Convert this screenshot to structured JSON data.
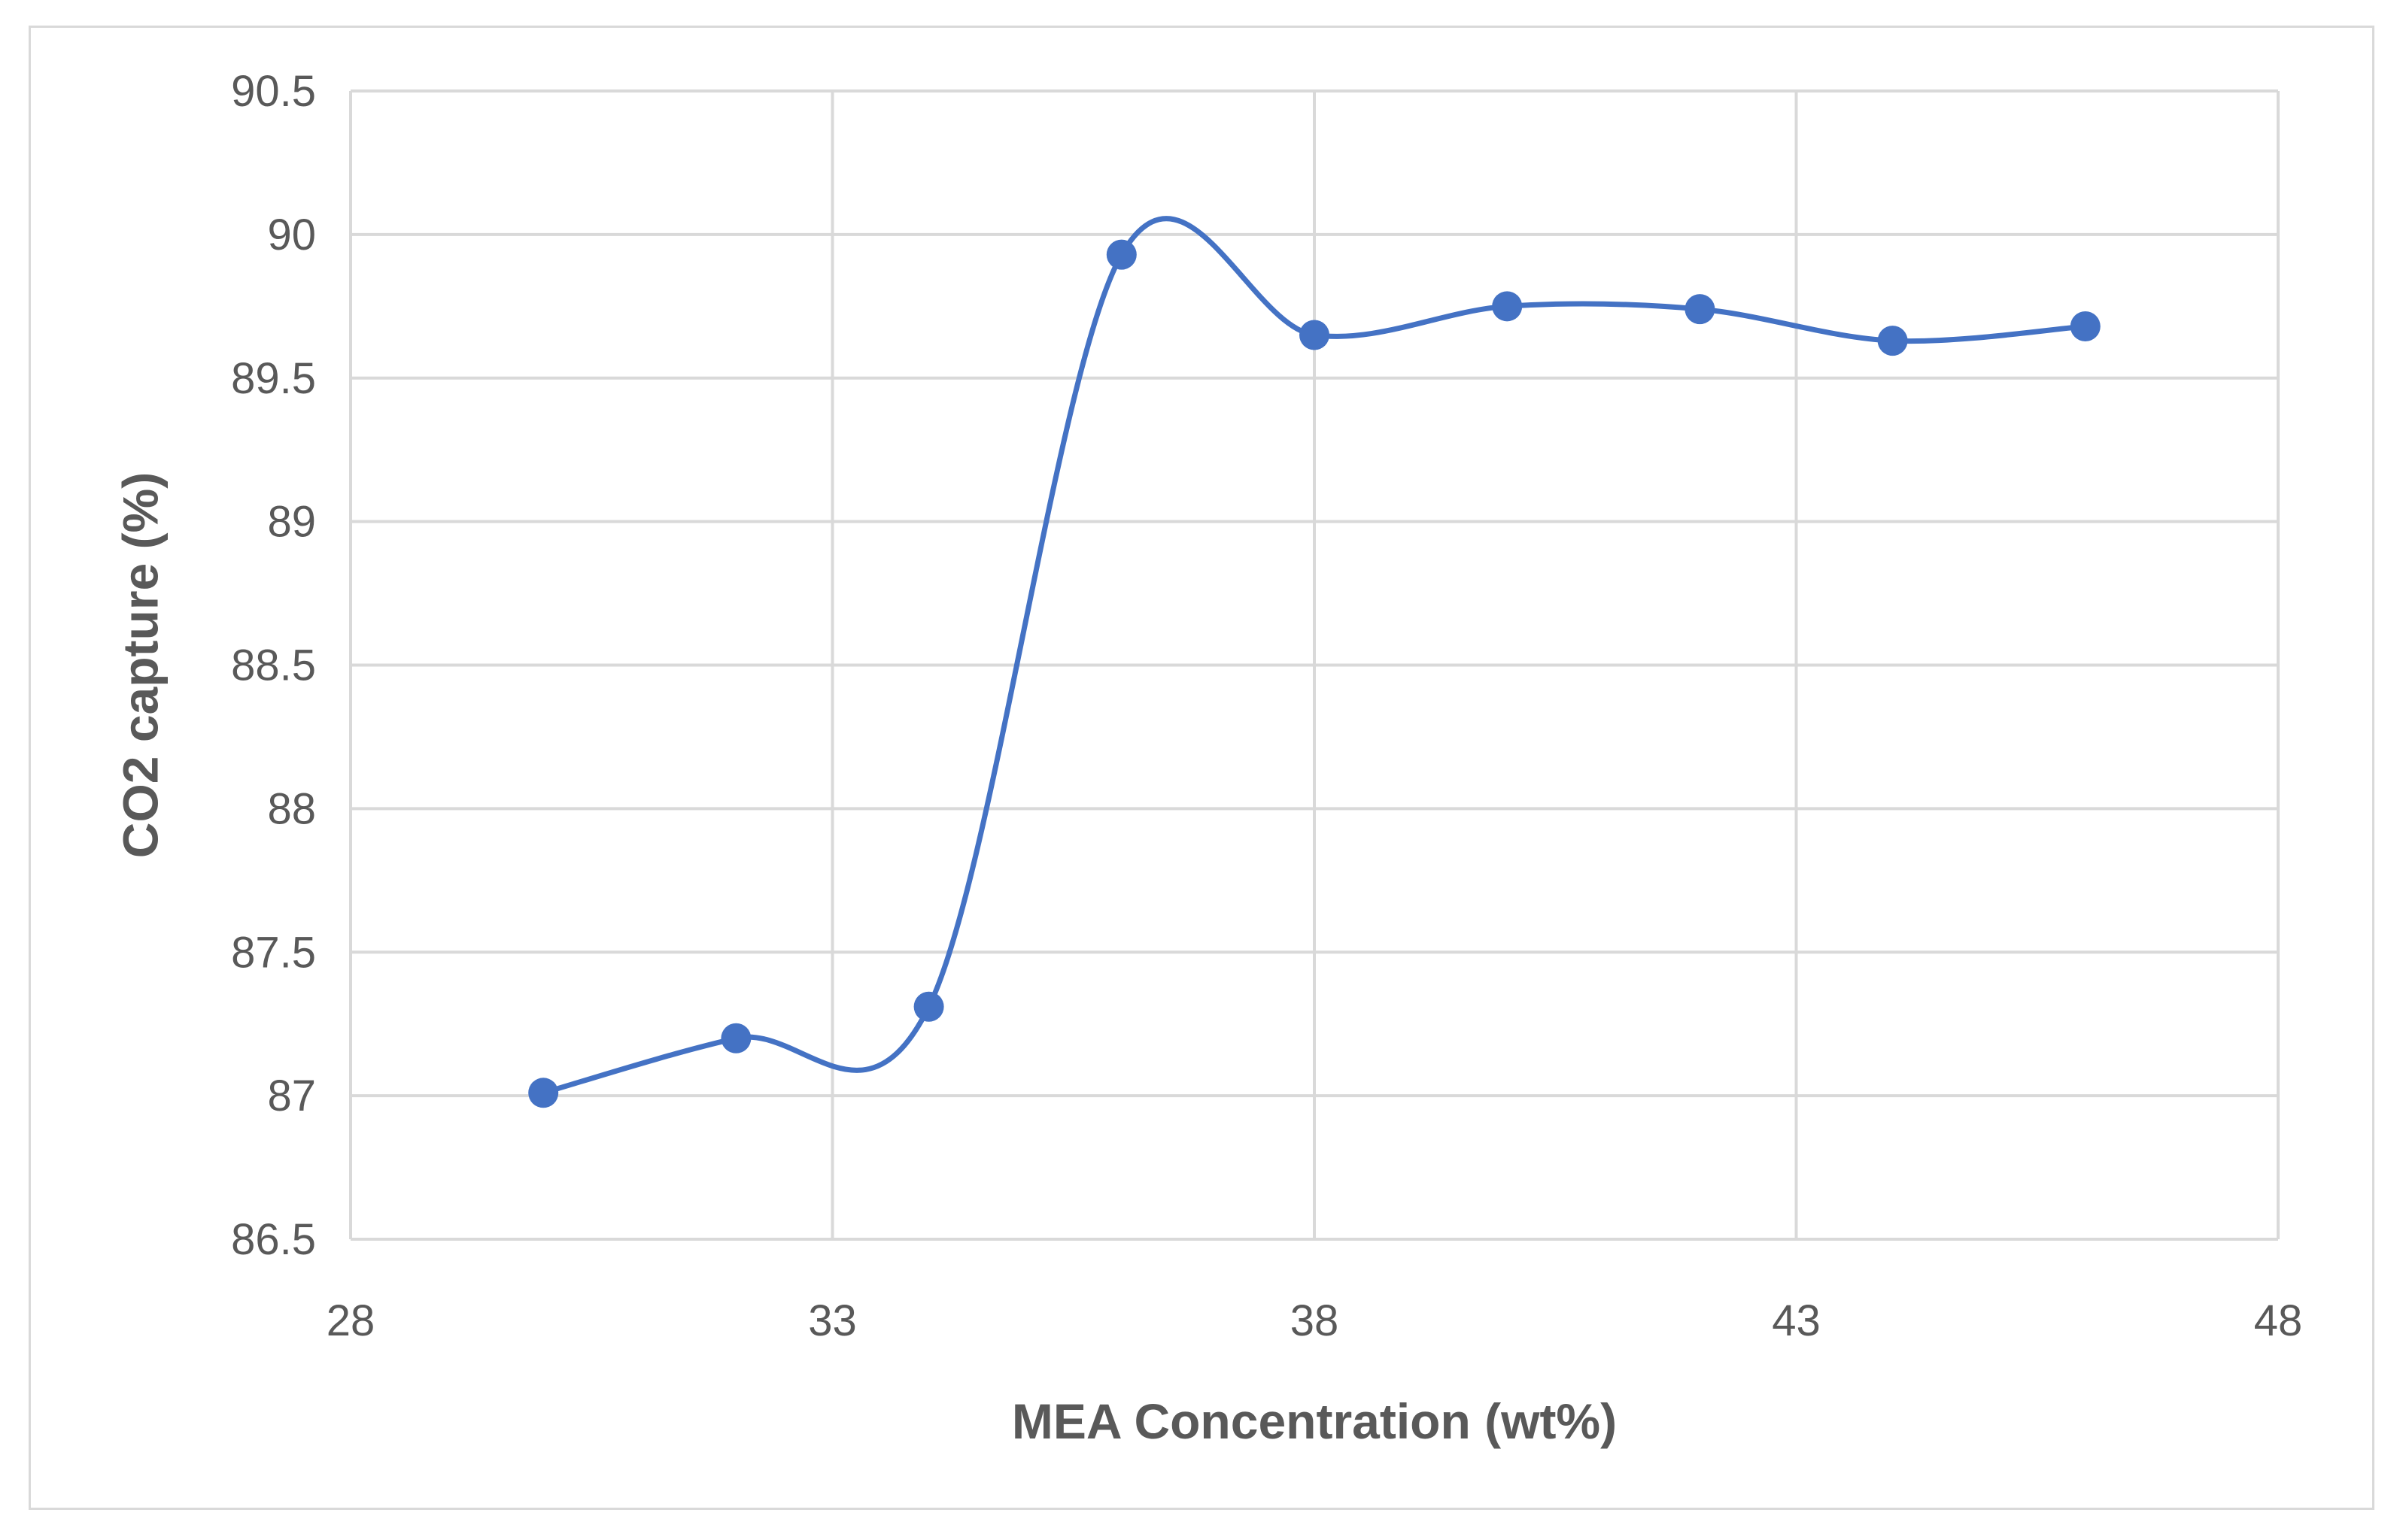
{
  "chart_data": {
    "type": "scatter",
    "title": "",
    "xlabel": "MEA Concentration (wt%)",
    "ylabel": "CO2 capture (%)",
    "xlim": [
      28,
      48
    ],
    "ylim": [
      86.5,
      90.5
    ],
    "x_ticks": [
      "28",
      "33",
      "38",
      "43",
      "48"
    ],
    "y_ticks": [
      "86.5",
      "87",
      "87.5",
      "88",
      "88.5",
      "89",
      "89.5",
      "90",
      "90.5"
    ],
    "grid": true,
    "legend": "none",
    "smooth": true,
    "series": [
      {
        "color": "#4472c4",
        "x": [
          30,
          32,
          34,
          36,
          38,
          40,
          42,
          44,
          46
        ],
        "y": [
          87.01,
          87.2,
          87.31,
          89.93,
          89.65,
          89.75,
          89.74,
          89.63,
          89.68
        ]
      }
    ]
  }
}
